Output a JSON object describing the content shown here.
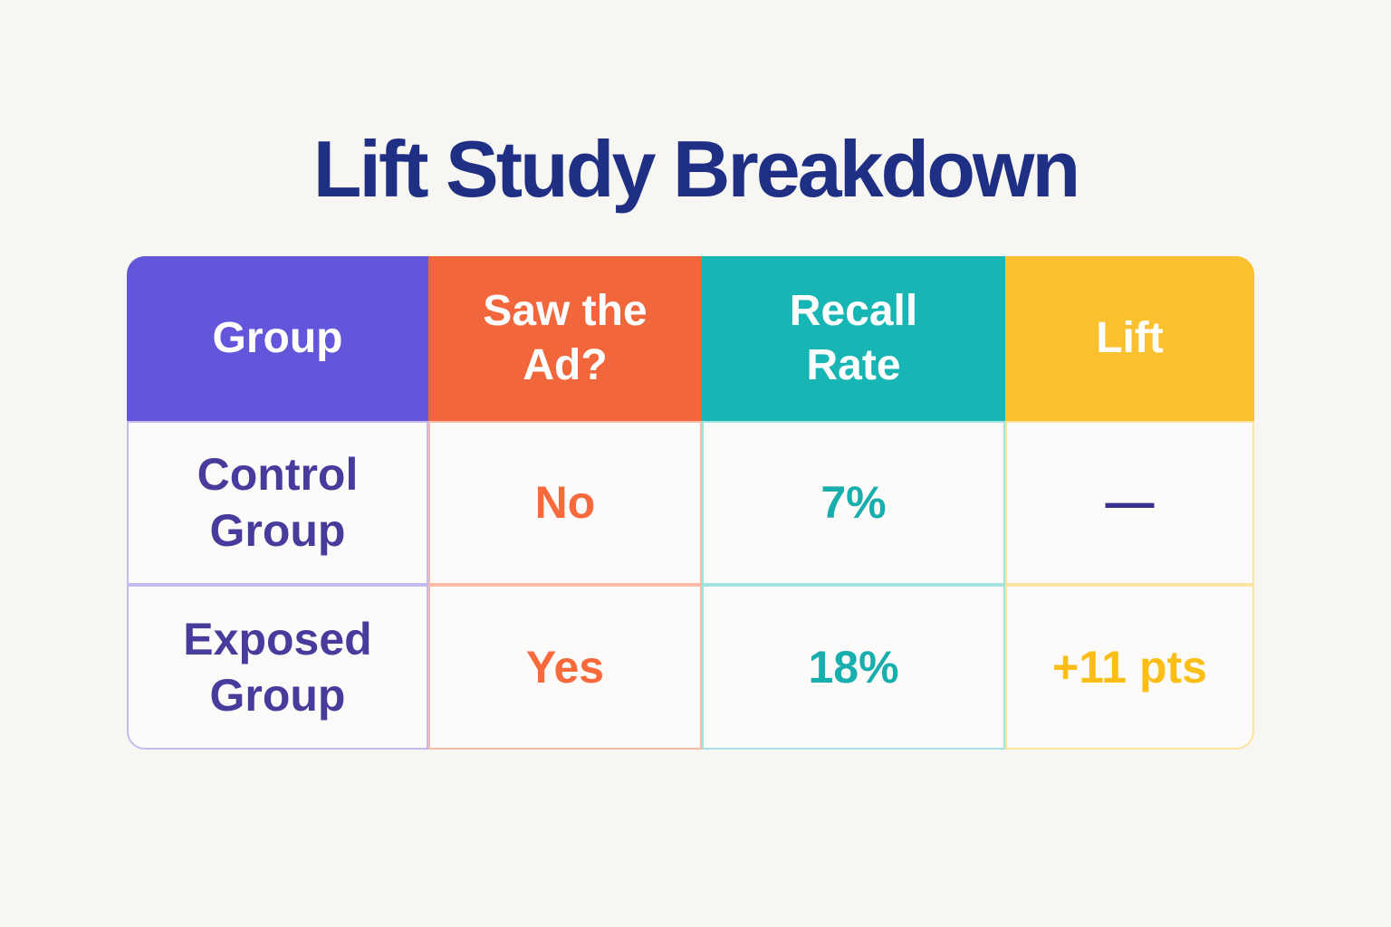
{
  "title": "Lift Study Breakdown",
  "table": {
    "columns": [
      {
        "label": "Group"
      },
      {
        "label": "Saw the\nAd?"
      },
      {
        "label": "Recall\nRate"
      },
      {
        "label": "Lift"
      }
    ],
    "rows": [
      {
        "group": "Control\nGroup",
        "saw_ad": "No",
        "recall_rate": "7%",
        "lift": "—"
      },
      {
        "group": "Exposed\nGroup",
        "saw_ad": "Yes",
        "recall_rate": "18%",
        "lift": "+11 pts"
      }
    ]
  },
  "colors": {
    "background": "#F8F6F3",
    "title_text": "#1F3084",
    "header_purple": "#6456DB",
    "header_orange": "#F2663B",
    "header_teal": "#17B5B4",
    "header_yellow": "#FBC02D",
    "cell_background": "#FDFBFA",
    "border_purple": "#C3BBEF",
    "border_orange": "#F9BBA8",
    "border_teal": "#A3E2E0",
    "border_yellow": "#FBE3A4",
    "text_purple": "#473C9B",
    "text_orange": "#F8693C",
    "text_teal": "#17AEAD",
    "text_yellow": "#FBBE17",
    "text_dash": "#39318F"
  },
  "chart_data": {
    "type": "table",
    "title": "Lift Study Breakdown",
    "columns": [
      "Group",
      "Saw the Ad?",
      "Recall Rate",
      "Lift"
    ],
    "rows": [
      [
        "Control Group",
        "No",
        "7%",
        "—"
      ],
      [
        "Exposed Group",
        "Yes",
        "18%",
        "+11 pts"
      ]
    ],
    "values": {
      "control_recall_pct": 7,
      "exposed_recall_pct": 18,
      "lift_points": 11
    }
  }
}
